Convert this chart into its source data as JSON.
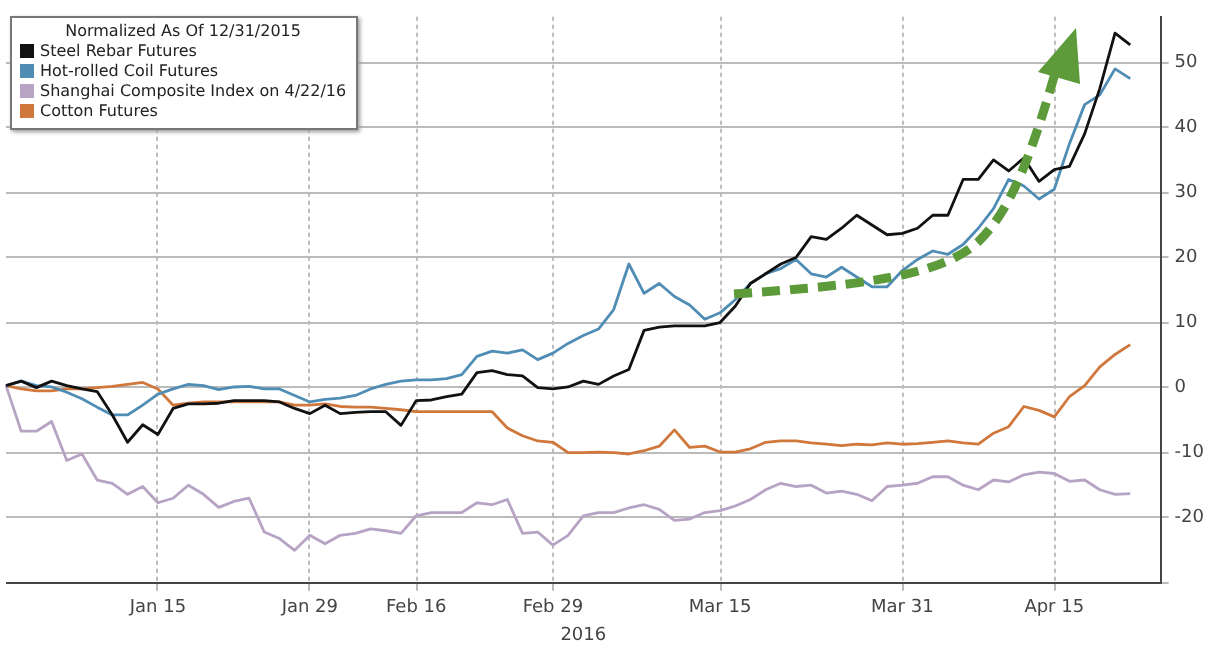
{
  "chart_data": {
    "type": "line",
    "legend_title": "Normalized As Of 12/31/2015",
    "xlabel": "2016",
    "categories": [
      null,
      null,
      null,
      null,
      null,
      null,
      null,
      null,
      null,
      null,
      "Jan 15",
      null,
      null,
      null,
      null,
      null,
      null,
      null,
      null,
      null,
      "Jan 29",
      null,
      null,
      null,
      null,
      null,
      null,
      "Feb 16",
      null,
      null,
      null,
      null,
      null,
      null,
      null,
      null,
      "Feb 29",
      null,
      null,
      null,
      null,
      null,
      null,
      null,
      null,
      null,
      null,
      "Mar 15",
      null,
      null,
      null,
      null,
      null,
      null,
      null,
      null,
      null,
      null,
      null,
      "Mar 31",
      null,
      null,
      null,
      null,
      null,
      null,
      null,
      null,
      null,
      "Apr 15",
      null,
      null,
      null,
      null,
      null,
      null,
      null
    ],
    "series": [
      {
        "name": "Steel Rebar Futures",
        "color": "#111111",
        "values": [
          0.3,
          1,
          0,
          1,
          0.3,
          -0.2,
          -0.6,
          -4.2,
          -8.4,
          -5.7,
          -7.2,
          -3.2,
          -2.5,
          -2.5,
          -2.4,
          -2,
          -2,
          -2,
          -2.2,
          -3.2,
          -4,
          -2.7,
          -4,
          -3.8,
          -3.7,
          -3.7,
          -5.8,
          -2,
          -1.9,
          -1.4,
          -1,
          2.3,
          2.6,
          2,
          1.8,
          0,
          -0.2,
          0.1,
          1,
          0.5,
          1.8,
          2.8,
          8.8,
          9.3,
          9.5,
          9.5,
          9.5,
          10,
          12.5,
          16,
          17.5,
          19,
          20,
          23.2,
          22.8,
          24.5,
          26.5,
          25,
          23.5,
          23.7,
          24.5,
          26.5,
          26.5,
          32,
          32,
          35,
          33.3,
          35.3,
          31.7,
          33.5,
          34,
          39,
          46,
          54.5,
          52.7,
          null,
          null
        ]
      },
      {
        "name": "Hot-rolled Coil Futures",
        "color": "#4f8db5",
        "values": [
          0.3,
          1,
          0.3,
          0.1,
          -0.7,
          -1.7,
          -3,
          -4.2,
          -4.2,
          -2.7,
          -1,
          -0.2,
          0.5,
          0.3,
          -0.3,
          0.1,
          0.2,
          -0.2,
          -0.2,
          -1.2,
          -2.2,
          -1.8,
          -1.6,
          -1.2,
          -0.2,
          0.5,
          1,
          1.2,
          1.2,
          1.4,
          2,
          4.8,
          5.6,
          5.3,
          5.8,
          4.3,
          5.3,
          6.8,
          8,
          9,
          12,
          19,
          14.5,
          16,
          14,
          12.7,
          10.5,
          11.5,
          13.5,
          16,
          17.5,
          18.3,
          19.7,
          17.5,
          17,
          18.5,
          17,
          15.5,
          15.5,
          18,
          19.7,
          21,
          20.5,
          22,
          24.5,
          27.5,
          32,
          31,
          29,
          30.5,
          37.5,
          43.5,
          45,
          49,
          47.5,
          null,
          null
        ]
      },
      {
        "name": "Shanghai Composite Index on 4/22/16",
        "color": "#b7a3c4",
        "values": [
          0.3,
          -6.7,
          -6.7,
          -5.2,
          -11.2,
          -10.2,
          -14.2,
          -14.7,
          -16.4,
          -15.2,
          -17.7,
          -17,
          -15,
          -16.4,
          -18.4,
          -17.5,
          -17,
          -22.2,
          -23.2,
          -25,
          -22.7,
          -24,
          -22.7,
          -22.4,
          -21.7,
          -22,
          -22.4,
          -19.7,
          -19.2,
          -19.2,
          -19.2,
          -17.7,
          -18,
          -17.2,
          -22.4,
          -22.2,
          -24.2,
          -22.7,
          -19.7,
          -19.2,
          -19.2,
          -18.5,
          -18,
          -18.7,
          -20.4,
          -20.2,
          -19.2,
          -18.9,
          -18.2,
          -17.2,
          -15.7,
          -14.7,
          -15.2,
          -15,
          -16.2,
          -15.9,
          -16.4,
          -17.4,
          -15.2,
          -15,
          -14.7,
          -13.7,
          -13.7,
          -15,
          -15.7,
          -14.2,
          -14.5,
          -13.4,
          -13,
          -13.2,
          -14.4,
          -14.2,
          -15.7,
          -16.4,
          -16.3,
          null,
          null
        ]
      },
      {
        "name": "Cotton Futures",
        "color": "#d0783c",
        "values": [
          0.3,
          -0.2,
          -0.5,
          -0.5,
          -0.2,
          -0.2,
          0,
          0.2,
          0.5,
          0.8,
          -0.2,
          -2.7,
          -2.4,
          -2.2,
          -2.2,
          -2.2,
          -2.2,
          -2.2,
          -2.2,
          -2.7,
          -2.7,
          -2.5,
          -2.9,
          -3,
          -3,
          -3.2,
          -3.4,
          -3.7,
          -3.7,
          -3.7,
          -3.7,
          -3.7,
          -3.7,
          -6.2,
          -7.4,
          -8.2,
          -8.4,
          -10,
          -10,
          -9.9,
          -10,
          -10.2,
          -9.7,
          -9,
          -6.5,
          -9.2,
          -9,
          -9.9,
          -9.9,
          -9.4,
          -8.4,
          -8.2,
          -8.2,
          -8.5,
          -8.7,
          -8.9,
          -8.7,
          -8.8,
          -8.5,
          -8.7,
          -8.6,
          -8.4,
          -8.2,
          -8.5,
          -8.7,
          -7,
          -6,
          -2.9,
          -3.5,
          -4.5,
          -1.4,
          0.3,
          3.2,
          5.1,
          6.6,
          null,
          null
        ]
      }
    ],
    "ylim": [
      -30,
      57
    ],
    "yticks": [
      {
        "value": -30,
        "label": null
      },
      -20,
      -10,
      0,
      10,
      20,
      30,
      40,
      50
    ],
    "grid": true,
    "legend": "top left",
    "marker": "none",
    "line_style": "solid"
  }
}
